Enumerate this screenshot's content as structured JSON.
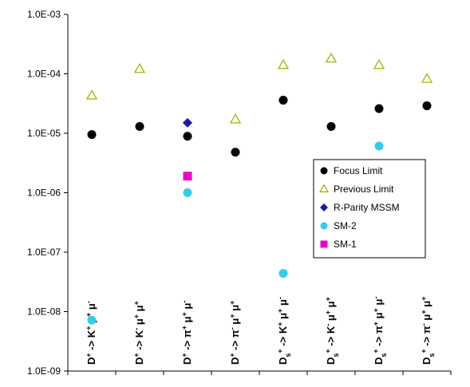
{
  "chart_data": {
    "type": "scatter",
    "y_scale": "log",
    "ylim": [
      1e-09,
      0.001
    ],
    "y_ticks": [
      {
        "value": 0.001,
        "label": "1.0E-03"
      },
      {
        "value": 0.0001,
        "label": "1.0E-04"
      },
      {
        "value": 1e-05,
        "label": "1.0E-05"
      },
      {
        "value": 1e-06,
        "label": "1.0E-06"
      },
      {
        "value": 1e-07,
        "label": "1.0E-07"
      },
      {
        "value": 1e-08,
        "label": "1.0E-08"
      },
      {
        "value": 1e-09,
        "label": "1.0E-09"
      }
    ],
    "categories": [
      "D+ -> K+ μ+ μ-",
      "D+ -> K- μ+ μ+",
      "D+ -> π+ μ+ μ-",
      "D+ -> π- μ+ μ+",
      "Ds+ -> K+ μ+ μ-",
      "Ds+ -> K- μ+ μ+",
      "Ds+ -> π+ μ+ μ-",
      "Ds+ -> π- μ+ μ+"
    ],
    "category_labels": [
      {
        "parent": "D",
        "parent_sub": "",
        "parent_sup": "+",
        "meson": "K",
        "meson_sup": "+",
        "mu1_sup": "+",
        "mu2_sup": "-"
      },
      {
        "parent": "D",
        "parent_sub": "",
        "parent_sup": "+",
        "meson": "K",
        "meson_sup": "-",
        "mu1_sup": "+",
        "mu2_sup": "+"
      },
      {
        "parent": "D",
        "parent_sub": "",
        "parent_sup": "+",
        "meson": "π",
        "meson_sup": "+",
        "mu1_sup": "+",
        "mu2_sup": "-"
      },
      {
        "parent": "D",
        "parent_sub": "",
        "parent_sup": "+",
        "meson": "π",
        "meson_sup": "-",
        "mu1_sup": "+",
        "mu2_sup": "+"
      },
      {
        "parent": "D",
        "parent_sub": "s",
        "parent_sup": "+",
        "meson": "K",
        "meson_sup": "+",
        "mu1_sup": "+",
        "mu2_sup": "-"
      },
      {
        "parent": "D",
        "parent_sub": "s",
        "parent_sup": "+",
        "meson": "K",
        "meson_sup": "-",
        "mu1_sup": "+",
        "mu2_sup": "+"
      },
      {
        "parent": "D",
        "parent_sub": "s",
        "parent_sup": "+",
        "meson": "π",
        "meson_sup": "+",
        "mu1_sup": "+",
        "mu2_sup": "-"
      },
      {
        "parent": "D",
        "parent_sub": "s",
        "parent_sup": "+",
        "meson": "π",
        "meson_sup": "-",
        "mu1_sup": "+",
        "mu2_sup": "+"
      }
    ],
    "arrow": "->",
    "mu_symbol": "μ",
    "series": [
      {
        "name": "Focus Limit",
        "marker": "circle",
        "color": "#000000",
        "values": [
          9.5e-06,
          1.3e-05,
          8.9e-06,
          4.8e-06,
          3.6e-05,
          1.3e-05,
          2.6e-05,
          2.9e-05
        ]
      },
      {
        "name": "Previous Limit",
        "marker": "triangle-open",
        "color": "#a8b400",
        "values": [
          4.3e-05,
          0.00012,
          null,
          1.7e-05,
          0.00014,
          0.00018,
          0.00014,
          8.2e-05
        ]
      },
      {
        "name": "R-Parity MSSM",
        "marker": "diamond",
        "color": "#1c18b0",
        "values": [
          null,
          null,
          1.5e-05,
          null,
          null,
          null,
          null,
          null
        ]
      },
      {
        "name": "SM-2",
        "marker": "circle",
        "color": "#33ccee",
        "values": [
          7.2e-09,
          null,
          1e-06,
          null,
          4.4e-08,
          null,
          6.1e-06,
          null
        ]
      },
      {
        "name": "SM-1",
        "marker": "square",
        "color": "#ee00cc",
        "values": [
          null,
          null,
          1.9e-06,
          null,
          null,
          null,
          null,
          null
        ]
      }
    ],
    "legend_position": "right"
  }
}
